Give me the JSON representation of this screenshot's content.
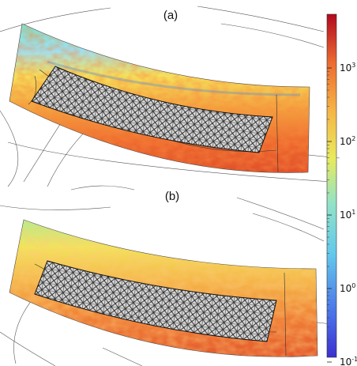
{
  "panels": [
    {
      "label": "(a)"
    },
    {
      "label": "(b)"
    }
  ],
  "colorbar": {
    "scale": "log",
    "ticks": [
      {
        "base": "10",
        "exp": "3"
      },
      {
        "base": "10",
        "exp": "2"
      },
      {
        "base": "10",
        "exp": "1"
      },
      {
        "base": "10",
        "exp": "0"
      },
      {
        "base": "10",
        "exp": "-1"
      }
    ],
    "colors": [
      "#b40426",
      "#e34a33",
      "#f4a442",
      "#f2e55c",
      "#a8e8a0",
      "#5ad0e6",
      "#3d86e0",
      "#3030d0"
    ]
  }
}
